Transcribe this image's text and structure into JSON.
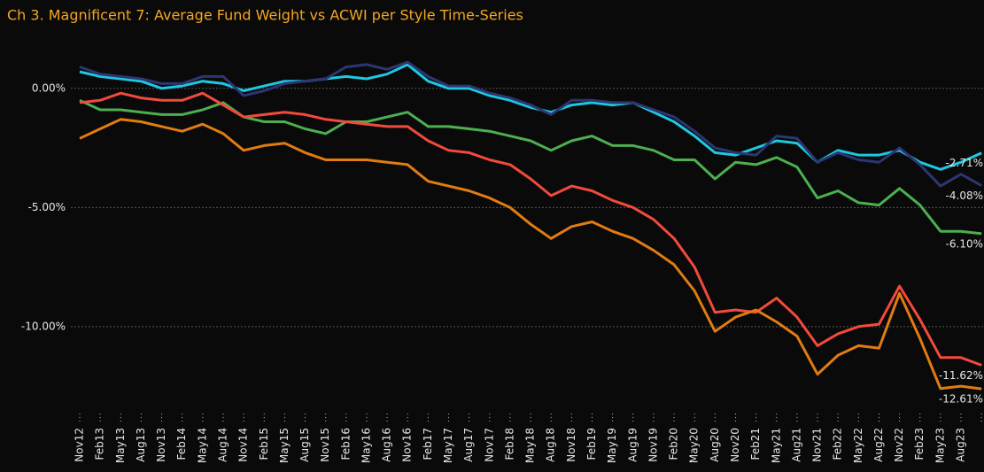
{
  "chart_data": {
    "type": "line",
    "title": "Ch 3. Magnificent 7:  Average Fund Weight vs ACWI per Style Time-Series",
    "categories": [
      "Nov12",
      "Feb13",
      "May13",
      "Aug13",
      "Nov13",
      "Feb14",
      "May14",
      "Aug14",
      "Nov14",
      "Feb15",
      "May15",
      "Aug15",
      "Nov15",
      "Feb16",
      "May16",
      "Aug16",
      "Nov16",
      "Feb17",
      "May17",
      "Aug17",
      "Nov17",
      "Feb18",
      "May18",
      "Aug18",
      "Nov18",
      "Feb19",
      "May19",
      "Aug19",
      "Nov19",
      "Feb20",
      "May20",
      "Aug20",
      "Nov20",
      "Feb21",
      "May21",
      "Aug21",
      "Nov21",
      "Feb22",
      "May22",
      "Aug22",
      "Nov22",
      "Feb23",
      "May23",
      "Aug23",
      null
    ],
    "ylim": [
      -13.5,
      2
    ],
    "yticks": [
      {
        "value": 0,
        "label": "0.00%"
      },
      {
        "value": -5,
        "label": "-5.00%"
      },
      {
        "value": -10,
        "label": "-10.00%"
      }
    ],
    "grid": true,
    "series": [
      {
        "color": "#1ec8e0",
        "values": [
          0.7,
          0.5,
          0.4,
          0.3,
          0.0,
          0.1,
          0.3,
          0.2,
          -0.1,
          0.1,
          0.3,
          0.3,
          0.4,
          0.5,
          0.4,
          0.6,
          1.0,
          0.3,
          0.0,
          0.0,
          -0.3,
          -0.5,
          -0.8,
          -1.0,
          -0.7,
          -0.6,
          -0.7,
          -0.6,
          -1.0,
          -1.4,
          -2.0,
          -2.7,
          -2.8,
          -2.5,
          -2.2,
          -2.3,
          -3.1,
          -2.6,
          -2.8,
          -2.8,
          -2.6,
          -3.1,
          -3.4,
          -3.1,
          -2.71
        ],
        "value_labels": [
          null,
          null,
          null,
          null,
          null,
          null,
          null,
          null,
          null,
          null,
          null,
          null,
          null,
          null,
          null,
          null,
          null,
          null,
          null,
          null,
          null,
          null,
          null,
          null,
          null,
          null,
          null,
          null,
          null,
          null,
          null,
          null,
          null,
          null,
          null,
          null,
          null,
          null,
          null,
          null,
          null,
          null,
          null,
          null,
          "-2.71%"
        ]
      },
      {
        "color": "#2b3672",
        "values": [
          0.9,
          0.6,
          0.5,
          0.4,
          0.2,
          0.2,
          0.5,
          0.5,
          -0.3,
          -0.1,
          0.2,
          0.3,
          0.4,
          0.9,
          1.0,
          0.8,
          1.1,
          0.5,
          0.1,
          0.1,
          -0.2,
          -0.4,
          -0.7,
          -1.1,
          -0.5,
          -0.5,
          -0.6,
          -0.6,
          -0.9,
          -1.2,
          -1.8,
          -2.5,
          -2.7,
          -2.8,
          -2.0,
          -2.1,
          -3.1,
          -2.7,
          -3.0,
          -3.1,
          -2.5,
          -3.2,
          -4.1,
          -3.6,
          -4.08
        ],
        "value_labels": [
          null,
          null,
          null,
          null,
          null,
          null,
          null,
          null,
          null,
          null,
          null,
          null,
          null,
          null,
          null,
          null,
          null,
          null,
          null,
          null,
          null,
          null,
          null,
          null,
          null,
          null,
          null,
          null,
          null,
          null,
          null,
          null,
          null,
          null,
          null,
          null,
          null,
          null,
          null,
          null,
          null,
          null,
          null,
          null,
          "-4.08%"
        ]
      },
      {
        "color": "#4caf50",
        "values": [
          -0.5,
          -0.9,
          -0.9,
          -1.0,
          -1.1,
          -1.1,
          -0.9,
          -0.6,
          -1.2,
          -1.4,
          -1.4,
          -1.7,
          -1.9,
          -1.4,
          -1.4,
          -1.2,
          -1.0,
          -1.6,
          -1.6,
          -1.7,
          -1.8,
          -2.0,
          -2.2,
          -2.6,
          -2.2,
          -2.0,
          -2.4,
          -2.4,
          -2.6,
          -3.0,
          -3.0,
          -3.8,
          -3.1,
          -3.2,
          -2.9,
          -3.3,
          -4.6,
          -4.3,
          -4.8,
          -4.9,
          -4.2,
          -4.9,
          -6.0,
          -6.0,
          -6.1
        ],
        "value_labels": [
          null,
          null,
          null,
          null,
          null,
          null,
          null,
          null,
          null,
          null,
          null,
          null,
          null,
          null,
          null,
          null,
          null,
          null,
          null,
          null,
          null,
          null,
          null,
          null,
          null,
          null,
          null,
          null,
          null,
          null,
          null,
          null,
          null,
          null,
          null,
          null,
          null,
          null,
          null,
          null,
          null,
          null,
          null,
          null,
          "-6.10%"
        ]
      },
      {
        "color": "#f24a3c",
        "values": [
          -0.6,
          -0.5,
          -0.2,
          -0.4,
          -0.5,
          -0.5,
          -0.2,
          -0.7,
          -1.2,
          -1.1,
          -1.0,
          -1.1,
          -1.3,
          -1.4,
          -1.5,
          -1.6,
          -1.6,
          -2.2,
          -2.6,
          -2.7,
          -3.0,
          -3.2,
          -3.8,
          -4.5,
          -4.1,
          -4.3,
          -4.7,
          -5.0,
          -5.5,
          -6.3,
          -7.5,
          -9.4,
          -9.3,
          -9.4,
          -8.8,
          -9.6,
          -10.8,
          -10.3,
          -10.0,
          -9.9,
          -8.3,
          -9.7,
          -11.3,
          -11.3,
          -11.62
        ],
        "value_labels": [
          null,
          null,
          null,
          null,
          null,
          null,
          null,
          null,
          null,
          null,
          null,
          null,
          null,
          null,
          null,
          null,
          null,
          null,
          null,
          null,
          null,
          null,
          null,
          null,
          null,
          null,
          null,
          null,
          null,
          null,
          null,
          null,
          null,
          null,
          null,
          null,
          null,
          null,
          null,
          null,
          null,
          null,
          null,
          null,
          "-11.62%"
        ]
      },
      {
        "color": "#e07c12",
        "values": [
          -2.1,
          -1.7,
          -1.3,
          -1.4,
          -1.6,
          -1.8,
          -1.5,
          -1.9,
          -2.6,
          -2.4,
          -2.3,
          -2.7,
          -3.0,
          -3.0,
          -3.0,
          -3.1,
          -3.2,
          -3.9,
          -4.1,
          -4.3,
          -4.6,
          -5.0,
          -5.7,
          -6.3,
          -5.8,
          -5.6,
          -6.0,
          -6.3,
          -6.8,
          -7.4,
          -8.5,
          -10.2,
          -9.6,
          -9.3,
          -9.8,
          -10.4,
          -12.0,
          -11.2,
          -10.8,
          -10.9,
          -8.6,
          -10.5,
          -12.6,
          -12.5,
          -12.61
        ],
        "value_labels": [
          null,
          null,
          null,
          null,
          null,
          null,
          null,
          null,
          null,
          null,
          null,
          null,
          null,
          null,
          null,
          null,
          null,
          null,
          null,
          null,
          null,
          null,
          null,
          null,
          null,
          null,
          null,
          null,
          null,
          null,
          null,
          null,
          null,
          null,
          null,
          null,
          null,
          null,
          null,
          null,
          null,
          null,
          null,
          null,
          "-12.61%"
        ]
      }
    ]
  }
}
